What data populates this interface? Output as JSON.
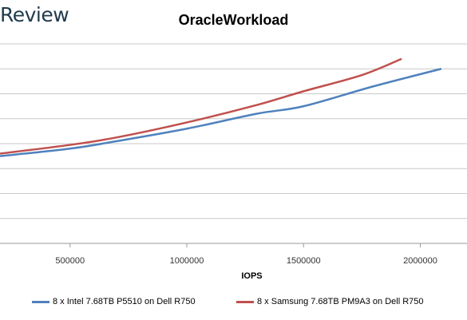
{
  "brand": {
    "text": "Review"
  },
  "chart_data": {
    "type": "line",
    "title": "OracleWorkload",
    "xlabel": "IOPS",
    "ylabel": "",
    "xticks": [
      "500000",
      "1000000",
      "1500000",
      "2000000"
    ],
    "xlim": [
      200000,
      2200000
    ],
    "ylim": [
      0,
      8
    ],
    "grid": true,
    "legend_position": "bottom",
    "series": [
      {
        "name": "8 x Intel 7.68TB P5510 on Dell R750",
        "color": "#4f81bd",
        "x": [
          200000,
          500000,
          700000,
          1000000,
          1300000,
          1500000,
          1800000,
          2090000
        ],
        "y": [
          3.5,
          3.8,
          4.1,
          4.6,
          5.2,
          5.5,
          6.3,
          7.0
        ]
      },
      {
        "name": "8 x Samsung 7.68TB PM9A3 on Dell R750",
        "color": "#c0504d",
        "x": [
          200000,
          500000,
          700000,
          1000000,
          1300000,
          1500000,
          1750000,
          1920000
        ],
        "y": [
          3.6,
          3.95,
          4.25,
          4.85,
          5.55,
          6.1,
          6.75,
          7.4
        ]
      }
    ]
  }
}
